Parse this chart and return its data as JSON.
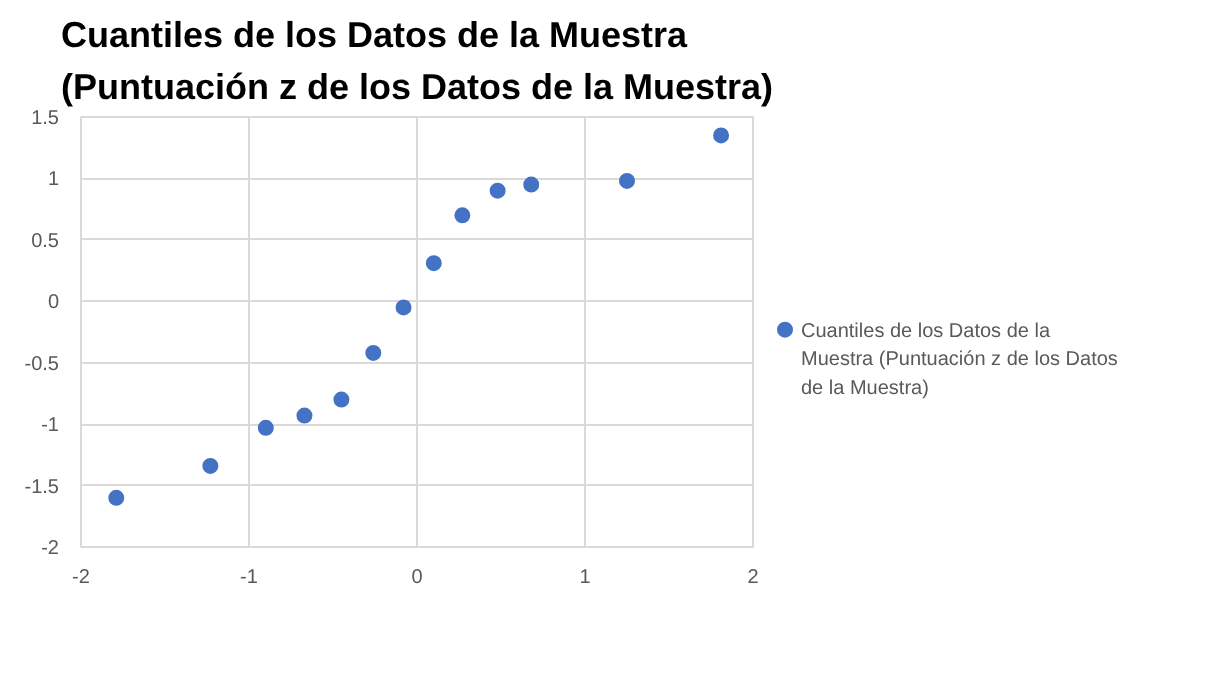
{
  "chart_data": {
    "type": "scatter",
    "title": "Cuantiles de los Datos de la Muestra\n(Puntuación z de los Datos de la Muestra)",
    "x": [
      -1.79,
      -1.23,
      -0.9,
      -0.67,
      -0.45,
      -0.26,
      -0.08,
      0.1,
      0.27,
      0.48,
      0.68,
      1.25,
      1.81
    ],
    "series": [
      {
        "name": "Cuantiles de los Datos de la Muestra (Puntuación z de los Datos de la Muestra)",
        "color": "#4472c4",
        "values": [
          -1.6,
          -1.34,
          -1.03,
          -0.93,
          -0.8,
          -0.42,
          -0.05,
          0.31,
          0.7,
          0.9,
          0.95,
          0.98,
          1.35
        ]
      }
    ],
    "xlim": [
      -2,
      2
    ],
    "xticks": [
      -2,
      -1,
      0,
      1,
      2
    ],
    "ylim": [
      -2,
      1.5
    ],
    "yticks": [
      -2,
      -1.5,
      -1,
      -0.5,
      0,
      0.5,
      1,
      1.5
    ],
    "grid": true,
    "legend": "right",
    "marker": "circle"
  }
}
